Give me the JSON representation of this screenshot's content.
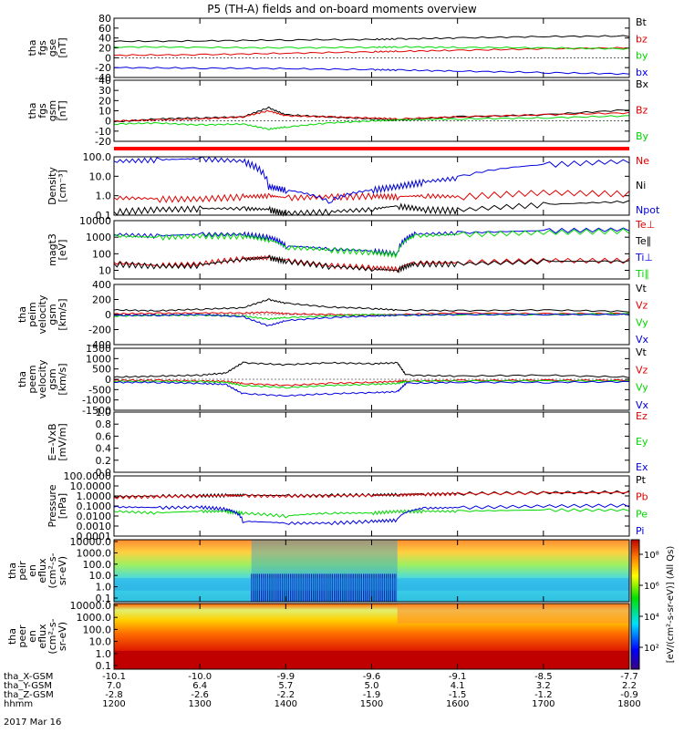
{
  "title": "P5 (TH-A) fields and on-board moments overview",
  "date_label": "2017 Mar 16",
  "colorbar_unit": "[eV/(cm²-s-sr-eV)] (All Qs)",
  "colorbar_ticks": [
    "10⁸",
    "10⁶",
    "10⁴",
    "10²"
  ],
  "colors": {
    "black": "#000000",
    "red": "#e00000",
    "green": "#00d800",
    "blue": "#0000e0",
    "flag": "#ff0000"
  },
  "chart_data": [
    {
      "type": "line",
      "id": "fgs_gse",
      "ylabel": [
        "tha",
        "fgs",
        "gse",
        "[nT]"
      ],
      "ylim": [
        -40,
        80
      ],
      "ticks": [
        -40,
        -20,
        0,
        20,
        40,
        60,
        80
      ],
      "legend": [
        "Bt",
        "bz",
        "by",
        "bx"
      ],
      "legend_colors": [
        "black",
        "red",
        "green",
        "blue"
      ],
      "x": [
        12.0,
        13.0,
        14.0,
        15.0,
        15.3,
        16.0,
        17.0,
        18.0
      ],
      "series": [
        {
          "name": "Bt",
          "color": "black",
          "values": [
            33,
            34,
            36,
            37,
            38,
            40,
            43,
            44
          ]
        },
        {
          "name": "bz",
          "color": "red",
          "values": [
            5,
            6,
            9,
            12,
            13,
            15,
            18,
            20
          ]
        },
        {
          "name": "by",
          "color": "green",
          "values": [
            22,
            21,
            20,
            21,
            22,
            21,
            20,
            18
          ]
        },
        {
          "name": "bx",
          "color": "blue",
          "values": [
            -20,
            -21,
            -22,
            -24,
            -25,
            -27,
            -30,
            -33
          ]
        }
      ]
    },
    {
      "type": "line",
      "id": "fgs_gsm",
      "ylabel": [
        "tha",
        "fgs",
        "gsm",
        "[nT]"
      ],
      "ylim": [
        -20,
        40
      ],
      "ticks": [
        -20,
        -10,
        0,
        10,
        20,
        30,
        40
      ],
      "legend": [
        "Bx",
        "Bz",
        "By"
      ],
      "legend_colors": [
        "black",
        "red",
        "green"
      ],
      "x": [
        12.0,
        12.5,
        13.0,
        13.5,
        13.8,
        14.0,
        14.5,
        15.0,
        15.3,
        16.0,
        17.0,
        18.0
      ],
      "series": [
        {
          "name": "Bx",
          "color": "black",
          "values": [
            -1,
            2,
            3,
            4,
            13,
            6,
            4,
            2,
            1,
            4,
            6,
            11
          ]
        },
        {
          "name": "Bz",
          "color": "red",
          "values": [
            0,
            1,
            2,
            4,
            10,
            5,
            4,
            3,
            2,
            4,
            6,
            8
          ]
        },
        {
          "name": "By",
          "color": "green",
          "values": [
            -3,
            -2,
            -4,
            -3,
            -8,
            -6,
            -2,
            0,
            1,
            2,
            3,
            5
          ]
        }
      ]
    },
    {
      "type": "line",
      "id": "density",
      "scale": "log",
      "ylabel": [
        "Density",
        "[cm⁻³]"
      ],
      "ylim": [
        0.1,
        100
      ],
      "ticks": [
        "0.1",
        "1.0",
        "10.0",
        "100.0"
      ],
      "legend": [
        "Ne",
        "Ni",
        "Npot"
      ],
      "legend_colors": [
        "red",
        "black",
        "blue"
      ],
      "x": [
        12.0,
        12.5,
        13.0,
        13.5,
        13.8,
        14.0,
        14.5,
        15.0,
        15.3,
        15.6,
        16.0,
        17.0,
        18.0
      ],
      "series": [
        {
          "name": "Ne",
          "color": "red",
          "values": [
            0.8,
            0.7,
            0.7,
            0.9,
            1.0,
            0.8,
            0.9,
            1.0,
            0.9,
            1.0,
            0.9,
            1.5,
            1.3
          ]
        },
        {
          "name": "Ni",
          "color": "black",
          "values": [
            0.15,
            0.2,
            0.22,
            0.22,
            0.2,
            0.12,
            0.15,
            0.2,
            0.3,
            0.2,
            0.18,
            0.35,
            0.5
          ]
        },
        {
          "name": "Npot",
          "color": "blue",
          "values": [
            60,
            70,
            80,
            60,
            3,
            2,
            0.5,
            2,
            3,
            5,
            8,
            40,
            60
          ]
        }
      ]
    },
    {
      "type": "line",
      "id": "temperature",
      "scale": "log",
      "ylabel": [
        "magt3",
        "[eV]"
      ],
      "ylim": [
        3,
        10000
      ],
      "ticks": [
        "10",
        "100",
        "1000",
        "10000"
      ],
      "legend": [
        "Te⊥",
        "Te∥",
        "Ti⊥",
        "Ti∥"
      ],
      "legend_colors": [
        "red",
        "black",
        "blue",
        "green"
      ],
      "x": [
        12.0,
        12.5,
        13.0,
        13.5,
        13.8,
        14.0,
        14.5,
        15.0,
        15.3,
        15.5,
        16.0,
        17.0,
        18.0
      ],
      "series": [
        {
          "name": "Te⊥",
          "color": "red",
          "values": [
            30,
            20,
            25,
            50,
            60,
            40,
            20,
            15,
            12,
            30,
            30,
            40,
            40
          ]
        },
        {
          "name": "Te∥",
          "color": "black",
          "values": [
            25,
            18,
            20,
            45,
            60,
            35,
            18,
            12,
            10,
            25,
            25,
            35,
            35
          ]
        },
        {
          "name": "Ti⊥",
          "color": "blue",
          "values": [
            1500,
            1200,
            1500,
            1500,
            1000,
            300,
            200,
            150,
            100,
            1500,
            1800,
            2500,
            3000
          ]
        },
        {
          "name": "Ti∥",
          "color": "green",
          "values": [
            1200,
            1000,
            1200,
            1200,
            700,
            250,
            180,
            120,
            90,
            1200,
            1500,
            2000,
            2500
          ]
        }
      ]
    },
    {
      "type": "line",
      "id": "peim_velocity",
      "ylabel": [
        "tha",
        "peim",
        "velocity",
        "gsm",
        "[km/s]"
      ],
      "ylim": [
        -400,
        400
      ],
      "ticks": [
        -400,
        -200,
        0,
        200,
        400
      ],
      "legend": [
        "Vt",
        "Vz",
        "Vy",
        "Vx"
      ],
      "legend_colors": [
        "black",
        "red",
        "green",
        "blue"
      ],
      "x": [
        12.0,
        12.5,
        13.0,
        13.5,
        13.8,
        14.0,
        14.5,
        15.0,
        15.3,
        16.0,
        17.0,
        18.0
      ],
      "series": [
        {
          "name": "Vt",
          "color": "black",
          "values": [
            60,
            50,
            70,
            90,
            200,
            150,
            100,
            80,
            60,
            50,
            60,
            40
          ]
        },
        {
          "name": "Vz",
          "color": "red",
          "values": [
            10,
            15,
            20,
            20,
            30,
            10,
            0,
            -10,
            0,
            20,
            10,
            15
          ]
        },
        {
          "name": "Vy",
          "color": "green",
          "values": [
            -20,
            -10,
            -10,
            -20,
            -60,
            -40,
            -20,
            0,
            -10,
            0,
            0,
            10
          ]
        },
        {
          "name": "Vx",
          "color": "blue",
          "values": [
            -10,
            -10,
            0,
            -30,
            -150,
            -80,
            -40,
            -20,
            -10,
            0,
            0,
            0
          ]
        }
      ]
    },
    {
      "type": "line",
      "id": "peem_velocity",
      "ylabel": [
        "tha",
        "peem",
        "velocity",
        "gsm",
        "[km/s]"
      ],
      "ylim": [
        -1500,
        1500
      ],
      "ticks": [
        -1500,
        -1000,
        -500,
        0,
        500,
        1000,
        1500
      ],
      "legend": [
        "Vt",
        "Vz",
        "Vy",
        "Vx"
      ],
      "legend_colors": [
        "black",
        "red",
        "green",
        "blue"
      ],
      "x": [
        12.0,
        12.5,
        13.0,
        13.3,
        13.5,
        14.0,
        14.5,
        15.0,
        15.3,
        15.4,
        16.0,
        17.0,
        18.0
      ],
      "series": [
        {
          "name": "Vt",
          "color": "black",
          "values": [
            100,
            150,
            200,
            300,
            800,
            700,
            800,
            750,
            800,
            200,
            150,
            200,
            100
          ]
        },
        {
          "name": "Vz",
          "color": "red",
          "values": [
            -50,
            -50,
            -80,
            -100,
            -200,
            -300,
            -200,
            -150,
            -100,
            -80,
            -60,
            -50,
            -50
          ]
        },
        {
          "name": "Vy",
          "color": "green",
          "values": [
            -100,
            -100,
            -120,
            -150,
            -300,
            -400,
            -300,
            -250,
            -200,
            -100,
            -80,
            -80,
            -80
          ]
        },
        {
          "name": "Vx",
          "color": "blue",
          "values": [
            -150,
            -150,
            -200,
            -250,
            -700,
            -800,
            -700,
            -650,
            -600,
            -200,
            -150,
            -150,
            -120
          ]
        }
      ]
    },
    {
      "type": "line",
      "id": "e_field",
      "ylabel": [
        "E=-VxB",
        "[mV/m]"
      ],
      "ylim": [
        0,
        1
      ],
      "ticks": [
        "0.0",
        "0.2",
        "0.4",
        "0.6",
        "0.8",
        "1.0"
      ],
      "legend": [
        "Ez",
        "Ey",
        "Ex"
      ],
      "legend_colors": [
        "red",
        "green",
        "blue"
      ],
      "x": [],
      "series": []
    },
    {
      "type": "line",
      "id": "pressure",
      "scale": "log",
      "ylabel": [
        "Pressure",
        "[nPa]"
      ],
      "ylim": [
        0.0001,
        100
      ],
      "ticks": [
        "0.0001",
        "0.0010",
        "0.0100",
        "0.1000",
        "1.0000",
        "10.0000",
        "100.0000"
      ],
      "legend": [
        "Pt",
        "Pb",
        "Pe",
        "Pi"
      ],
      "legend_colors": [
        "black",
        "red",
        "green",
        "blue"
      ],
      "x": [
        12.0,
        12.5,
        13.0,
        13.3,
        13.5,
        14.0,
        14.5,
        15.0,
        15.3,
        15.6,
        16.0,
        17.0,
        18.0
      ],
      "series": [
        {
          "name": "Pt",
          "color": "black",
          "values": [
            0.9,
            1.0,
            1.1,
            1.2,
            1.2,
            1.1,
            1.2,
            1.3,
            1.4,
            1.6,
            1.8,
            2.2,
            2.5
          ]
        },
        {
          "name": "Pb",
          "color": "red",
          "values": [
            0.8,
            0.9,
            1.0,
            1.1,
            1.1,
            1.0,
            1.1,
            1.2,
            1.3,
            1.5,
            1.7,
            2.0,
            2.3
          ]
        },
        {
          "name": "Pe",
          "color": "green",
          "values": [
            0.03,
            0.02,
            0.03,
            0.03,
            0.02,
            0.01,
            0.02,
            0.02,
            0.03,
            0.03,
            0.03,
            0.04,
            0.04
          ]
        },
        {
          "name": "Pi",
          "color": "blue",
          "values": [
            0.08,
            0.07,
            0.08,
            0.05,
            0.003,
            0.002,
            0.002,
            0.003,
            0.004,
            0.06,
            0.07,
            0.1,
            0.12
          ]
        }
      ]
    },
    {
      "type": "heatmap",
      "id": "peir_spectrogram",
      "ylabel": [
        "tha",
        "peir",
        "en",
        "eflux",
        "(cm²-s-",
        "sr-eV)"
      ],
      "ticks": [
        "0.1",
        "1.0",
        "10.0",
        "100.0",
        "1000.0",
        "10000.0"
      ]
    },
    {
      "type": "heatmap",
      "id": "peer_spectrogram",
      "ylabel": [
        "tha",
        "peer",
        "en",
        "eflux",
        "(cm²-s-",
        "sr-eV)"
      ],
      "ticks": [
        "0.1",
        "1.0",
        "10.0",
        "100.0",
        "1000.0",
        "10000.0"
      ]
    }
  ],
  "xaxis": {
    "row_labels": [
      "tha_X-GSM",
      "tha_Y-GSM",
      "tha_Z-GSM",
      "hhmm"
    ],
    "columns": [
      {
        "x": 12.0,
        "vals": [
          "-10.1",
          "7.0",
          "-2.8",
          "1200"
        ]
      },
      {
        "x": 13.0,
        "vals": [
          "-10.0",
          "6.4",
          "-2.6",
          "1300"
        ]
      },
      {
        "x": 14.0,
        "vals": [
          "-9.9",
          "5.7",
          "-2.2",
          "1400"
        ]
      },
      {
        "x": 15.0,
        "vals": [
          "-9.6",
          "5.0",
          "-1.9",
          "1500"
        ]
      },
      {
        "x": 16.0,
        "vals": [
          "-9.1",
          "4.1",
          "-1.5",
          "1600"
        ]
      },
      {
        "x": 17.0,
        "vals": [
          "-8.5",
          "3.2",
          "-1.2",
          "1700"
        ]
      },
      {
        "x": 18.0,
        "vals": [
          "-7.7",
          "2.2",
          "-0.9",
          "1800"
        ]
      }
    ]
  }
}
